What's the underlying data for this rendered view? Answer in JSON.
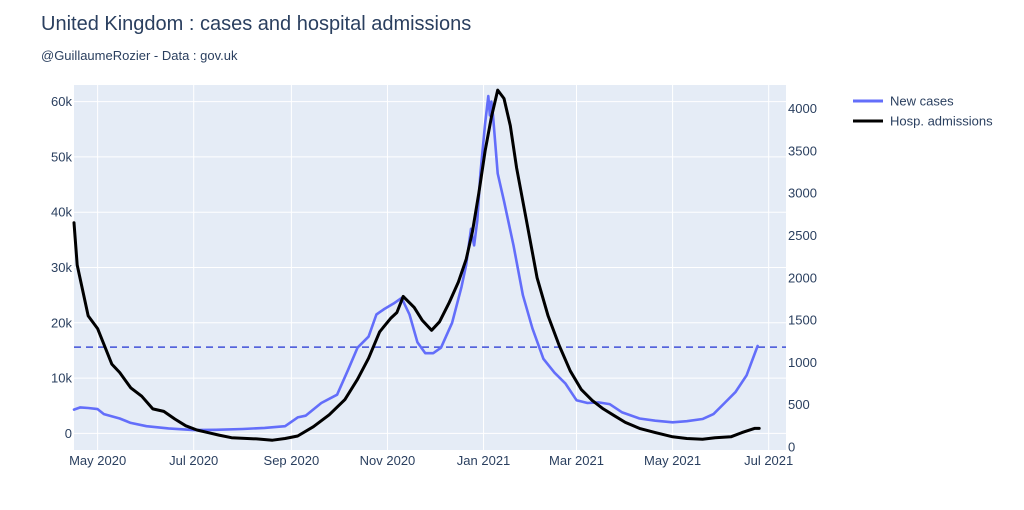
{
  "chart_data": {
    "type": "line",
    "title": "United Kingdom : cases and hospital admissions",
    "subtitle": "@GuillaumeRozier - Data : gov.uk",
    "x_ticks": [
      "May 2020",
      "Jul 2020",
      "Sep 2020",
      "Nov 2020",
      "Jan 2021",
      "Mar 2021",
      "May 2021",
      "Jul 2021"
    ],
    "x_tick_dates": [
      "2020-05-01",
      "2020-07-01",
      "2020-09-01",
      "2020-11-01",
      "2021-01-01",
      "2021-03-01",
      "2021-05-01",
      "2021-07-01"
    ],
    "xlim": [
      "2020-04-16",
      "2021-07-12"
    ],
    "y_left": {
      "ylim": [
        -3000,
        63000
      ],
      "ticks": [
        0,
        10000,
        20000,
        30000,
        40000,
        50000,
        60000
      ],
      "tick_labels": [
        "0",
        "10k",
        "20k",
        "30k",
        "40k",
        "50k",
        "60k"
      ]
    },
    "y_right": {
      "ylim": [
        -36,
        4280
      ],
      "ticks": [
        0,
        500,
        1000,
        1500,
        2000,
        2500,
        3000,
        3500,
        4000
      ],
      "tick_labels": [
        "0",
        "500",
        "1000",
        "1500",
        "2000",
        "2500",
        "3000",
        "3500",
        "4000"
      ]
    },
    "reference_line": {
      "axis": "left",
      "value": 15600,
      "style": "dashed",
      "color": "#4050d8"
    },
    "grid": true,
    "legend_position": "top-right",
    "series": [
      {
        "name": "New cases",
        "axis": "left",
        "color": "#636efa",
        "points": [
          [
            "2020-04-16",
            4300
          ],
          [
            "2020-04-20",
            4700
          ],
          [
            "2020-04-25",
            4600
          ],
          [
            "2020-05-01",
            4400
          ],
          [
            "2020-05-05",
            3500
          ],
          [
            "2020-05-15",
            2700
          ],
          [
            "2020-05-22",
            1900
          ],
          [
            "2020-06-01",
            1300
          ],
          [
            "2020-06-15",
            900
          ],
          [
            "2020-07-01",
            600
          ],
          [
            "2020-07-15",
            650
          ],
          [
            "2020-08-01",
            800
          ],
          [
            "2020-08-15",
            1000
          ],
          [
            "2020-08-28",
            1300
          ],
          [
            "2020-09-05",
            2900
          ],
          [
            "2020-09-10",
            3200
          ],
          [
            "2020-09-20",
            5500
          ],
          [
            "2020-09-30",
            7000
          ],
          [
            "2020-10-07",
            11500
          ],
          [
            "2020-10-13",
            15500
          ],
          [
            "2020-10-20",
            17500
          ],
          [
            "2020-10-25",
            21500
          ],
          [
            "2020-10-30",
            22500
          ],
          [
            "2020-11-05",
            23500
          ],
          [
            "2020-11-10",
            24500
          ],
          [
            "2020-11-15",
            21500
          ],
          [
            "2020-11-20",
            16500
          ],
          [
            "2020-11-25",
            14500
          ],
          [
            "2020-11-30",
            14500
          ],
          [
            "2020-12-05",
            15500
          ],
          [
            "2020-12-12",
            20000
          ],
          [
            "2020-12-18",
            26500
          ],
          [
            "2020-12-21",
            30500
          ],
          [
            "2020-12-24",
            37000
          ],
          [
            "2020-12-26",
            34000
          ],
          [
            "2020-12-28",
            38500
          ],
          [
            "2020-12-30",
            47000
          ],
          [
            "2021-01-02",
            56000
          ],
          [
            "2021-01-04",
            61000
          ],
          [
            "2021-01-05",
            57500
          ],
          [
            "2021-01-06",
            60000
          ],
          [
            "2021-01-07",
            57500
          ],
          [
            "2021-01-10",
            47000
          ],
          [
            "2021-01-14",
            42000
          ],
          [
            "2021-01-20",
            34000
          ],
          [
            "2021-01-26",
            25000
          ],
          [
            "2021-02-01",
            19000
          ],
          [
            "2021-02-08",
            13500
          ],
          [
            "2021-02-15",
            11000
          ],
          [
            "2021-02-22",
            9000
          ],
          [
            "2021-03-01",
            6000
          ],
          [
            "2021-03-08",
            5500
          ],
          [
            "2021-03-15",
            5600
          ],
          [
            "2021-03-22",
            5300
          ],
          [
            "2021-03-30",
            3800
          ],
          [
            "2021-04-10",
            2700
          ],
          [
            "2021-04-20",
            2300
          ],
          [
            "2021-05-01",
            2000
          ],
          [
            "2021-05-10",
            2200
          ],
          [
            "2021-05-20",
            2600
          ],
          [
            "2021-05-27",
            3500
          ],
          [
            "2021-06-03",
            5500
          ],
          [
            "2021-06-10",
            7500
          ],
          [
            "2021-06-17",
            10500
          ],
          [
            "2021-06-24",
            15800
          ]
        ]
      },
      {
        "name": "Hosp. admissions",
        "axis": "right",
        "color": "#000000",
        "points": [
          [
            "2020-04-16",
            2650
          ],
          [
            "2020-04-18",
            2150
          ],
          [
            "2020-04-25",
            1550
          ],
          [
            "2020-05-01",
            1400
          ],
          [
            "2020-05-10",
            980
          ],
          [
            "2020-05-15",
            880
          ],
          [
            "2020-05-22",
            700
          ],
          [
            "2020-05-29",
            600
          ],
          [
            "2020-06-05",
            450
          ],
          [
            "2020-06-12",
            420
          ],
          [
            "2020-06-19",
            330
          ],
          [
            "2020-06-26",
            250
          ],
          [
            "2020-07-03",
            200
          ],
          [
            "2020-07-10",
            170
          ],
          [
            "2020-07-17",
            140
          ],
          [
            "2020-07-25",
            110
          ],
          [
            "2020-08-10",
            95
          ],
          [
            "2020-08-20",
            80
          ],
          [
            "2020-08-28",
            100
          ],
          [
            "2020-09-05",
            130
          ],
          [
            "2020-09-15",
            240
          ],
          [
            "2020-09-25",
            380
          ],
          [
            "2020-10-05",
            560
          ],
          [
            "2020-10-13",
            800
          ],
          [
            "2020-10-20",
            1050
          ],
          [
            "2020-10-27",
            1360
          ],
          [
            "2020-11-03",
            1520
          ],
          [
            "2020-11-07",
            1590
          ],
          [
            "2020-11-11",
            1780
          ],
          [
            "2020-11-18",
            1650
          ],
          [
            "2020-11-23",
            1500
          ],
          [
            "2020-11-29",
            1380
          ],
          [
            "2020-12-04",
            1480
          ],
          [
            "2020-12-10",
            1700
          ],
          [
            "2020-12-16",
            1950
          ],
          [
            "2020-12-21",
            2220
          ],
          [
            "2020-12-25",
            2550
          ],
          [
            "2020-12-29",
            3000
          ],
          [
            "2021-01-02",
            3500
          ],
          [
            "2021-01-06",
            3900
          ],
          [
            "2021-01-10",
            4220
          ],
          [
            "2021-01-14",
            4120
          ],
          [
            "2021-01-18",
            3800
          ],
          [
            "2021-01-22",
            3300
          ],
          [
            "2021-01-28",
            2700
          ],
          [
            "2021-02-04",
            2000
          ],
          [
            "2021-02-11",
            1550
          ],
          [
            "2021-02-18",
            1200
          ],
          [
            "2021-02-25",
            900
          ],
          [
            "2021-03-04",
            680
          ],
          [
            "2021-03-11",
            550
          ],
          [
            "2021-03-18",
            450
          ],
          [
            "2021-03-25",
            370
          ],
          [
            "2021-04-01",
            290
          ],
          [
            "2021-04-10",
            220
          ],
          [
            "2021-04-20",
            170
          ],
          [
            "2021-05-01",
            120
          ],
          [
            "2021-05-10",
            100
          ],
          [
            "2021-05-20",
            90
          ],
          [
            "2021-05-28",
            110
          ],
          [
            "2021-06-07",
            120
          ],
          [
            "2021-06-14",
            170
          ],
          [
            "2021-06-22",
            220
          ],
          [
            "2021-06-25",
            220
          ]
        ]
      }
    ]
  }
}
